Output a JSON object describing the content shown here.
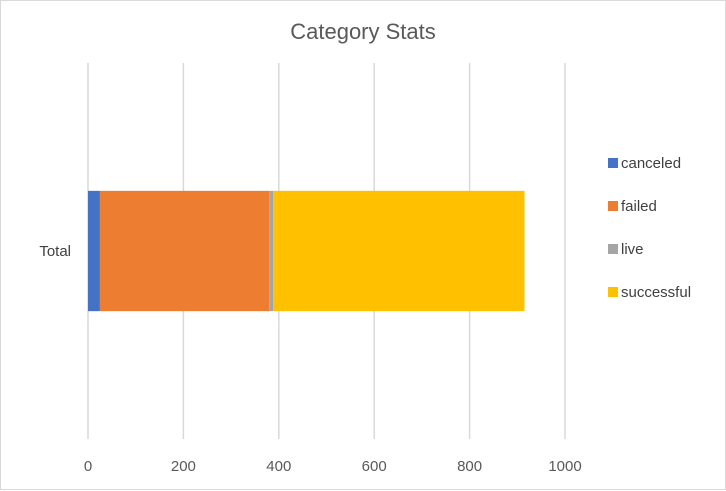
{
  "chart_data": {
    "type": "bar",
    "orientation": "horizontal",
    "stacked": true,
    "title": "Category Stats",
    "categories": [
      "Total"
    ],
    "series": [
      {
        "name": "canceled",
        "values": [
          25
        ],
        "color": "#4472C4"
      },
      {
        "name": "failed",
        "values": [
          355
        ],
        "color": "#ED7D31"
      },
      {
        "name": "live",
        "values": [
          8
        ],
        "color": "#A5A5A5"
      },
      {
        "name": "successful",
        "values": [
          527
        ],
        "color": "#FFC000"
      }
    ],
    "xlim": [
      0,
      1000
    ],
    "x_ticks": [
      "0",
      "200",
      "400",
      "600",
      "800",
      "1000"
    ],
    "grid": true,
    "legend_position": "right"
  }
}
